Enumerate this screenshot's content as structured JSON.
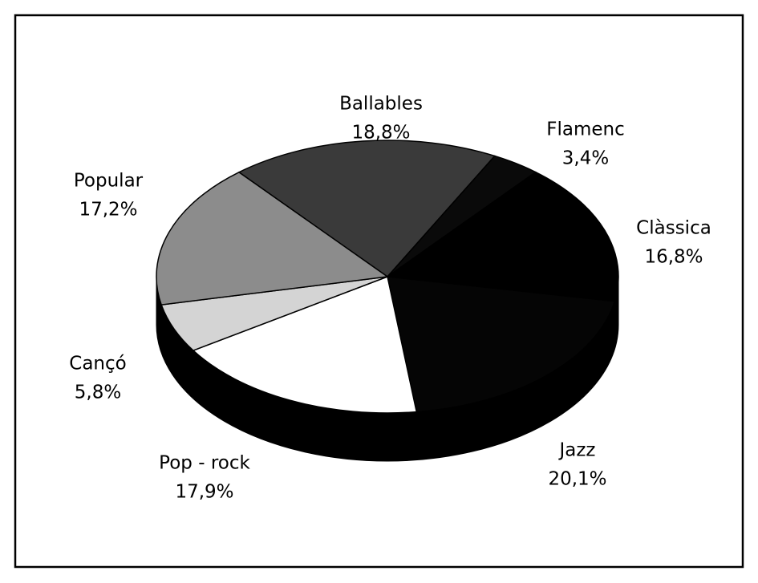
{
  "chart_data": {
    "type": "pie",
    "categories": [
      "Ballables",
      "Flamenc",
      "Clàssica",
      "Jazz",
      "Pop - rock",
      "Cançó",
      "Popular"
    ],
    "values": [
      18.8,
      3.4,
      16.8,
      20.1,
      17.9,
      5.8,
      17.2
    ],
    "value_labels": [
      "18,8%",
      "3,4%",
      "16,8%",
      "20,1%",
      "17,9%",
      "5,8%",
      "17,2%"
    ],
    "colors": [
      "#3a3a3a",
      "#0a0a0a",
      "#000000",
      "#050505",
      "#ffffff",
      "#d4d4d4",
      "#8c8c8c"
    ]
  }
}
